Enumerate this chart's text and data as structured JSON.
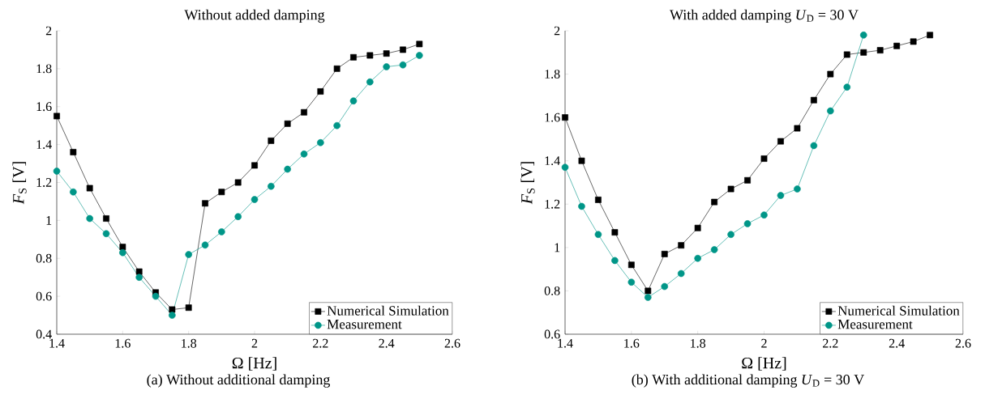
{
  "chart_data": [
    {
      "type": "line",
      "title": "Without added damping",
      "xlabel": "Ω [Hz]",
      "ylabel": "*F*$_{S}$ [V]",
      "x": [
        1.4,
        1.45,
        1.5,
        1.55,
        1.6,
        1.65,
        1.7,
        1.75,
        1.8,
        1.85,
        1.9,
        1.95,
        2.0,
        2.05,
        2.1,
        2.15,
        2.2,
        2.25,
        2.3,
        2.35,
        2.4,
        2.45,
        2.5
      ],
      "series": [
        {
          "name": "Numerical Simulation",
          "color": "#000000",
          "marker": "square",
          "values": [
            1.55,
            1.36,
            1.17,
            1.01,
            0.86,
            0.73,
            0.62,
            0.53,
            0.54,
            1.09,
            1.15,
            1.2,
            1.29,
            1.42,
            1.51,
            1.57,
            1.68,
            1.8,
            1.86,
            1.87,
            1.88,
            1.9,
            1.93
          ]
        },
        {
          "name": "Measurement",
          "color": "#009688",
          "marker": "circle",
          "values": [
            1.26,
            1.15,
            1.01,
            0.93,
            0.83,
            0.7,
            0.6,
            0.5,
            0.82,
            0.87,
            0.94,
            1.02,
            1.11,
            1.18,
            1.27,
            1.35,
            1.41,
            1.5,
            1.63,
            1.73,
            1.81,
            1.82,
            1.87
          ]
        }
      ],
      "xlim": [
        1.4,
        2.6
      ],
      "xticks": [
        1.4,
        1.6,
        1.8,
        2,
        2.2,
        2.4,
        2.6
      ],
      "ylim": [
        0.4,
        2
      ],
      "yticks": [
        0.4,
        0.6,
        0.8,
        1,
        1.2,
        1.4,
        1.6,
        1.8,
        2
      ],
      "legend": "bottom right",
      "grid": false,
      "annotations": [
        "(a) Without additional damping"
      ]
    },
    {
      "type": "line",
      "title": "With added damping *U*$_{D}$ = 30 V",
      "xlabel": "Ω [Hz]",
      "ylabel": "*F*$_{S}$ [V]",
      "x": [
        1.4,
        1.45,
        1.5,
        1.55,
        1.6,
        1.65,
        1.7,
        1.75,
        1.8,
        1.85,
        1.9,
        1.95,
        2.0,
        2.05,
        2.1,
        2.15,
        2.2,
        2.25,
        2.3,
        2.35,
        2.4,
        2.45,
        2.5
      ],
      "series": [
        {
          "name": "Numerical Simulation",
          "color": "#000000",
          "marker": "square",
          "values": [
            1.6,
            1.4,
            1.22,
            1.07,
            0.92,
            0.8,
            0.97,
            1.01,
            1.09,
            1.21,
            1.27,
            1.31,
            1.41,
            1.49,
            1.55,
            1.68,
            1.8,
            1.89,
            1.9,
            1.91,
            1.93,
            1.95,
            1.98
          ]
        },
        {
          "name": "Measurement",
          "color": "#009688",
          "marker": "circle",
          "x": [
            1.4,
            1.45,
            1.5,
            1.55,
            1.6,
            1.65,
            1.7,
            1.75,
            1.8,
            1.85,
            1.9,
            1.95,
            2.0,
            2.05,
            2.1,
            2.15,
            2.2,
            2.25,
            2.3
          ],
          "values": [
            1.37,
            1.19,
            1.06,
            0.94,
            0.84,
            0.77,
            0.82,
            0.88,
            0.95,
            0.99,
            1.06,
            1.11,
            1.15,
            1.24,
            1.27,
            1.47,
            1.63,
            1.74,
            1.98
          ]
        }
      ],
      "xlim": [
        1.4,
        2.6
      ],
      "xticks": [
        1.4,
        1.6,
        1.8,
        2,
        2.2,
        2.4,
        2.6
      ],
      "ylim": [
        0.6,
        2
      ],
      "yticks": [
        0.6,
        0.8,
        1,
        1.2,
        1.4,
        1.6,
        1.8,
        2
      ],
      "legend": "bottom right",
      "grid": false,
      "annotations": [
        "(b) With additional damping *U*$_{D}$ = 30 V"
      ]
    }
  ]
}
